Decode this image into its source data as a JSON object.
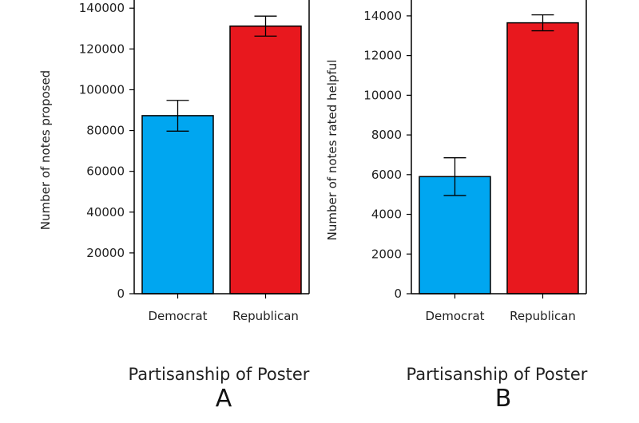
{
  "chart_data": [
    {
      "type": "bar",
      "panel_label": "A",
      "categories": [
        "Democrat",
        "Republican"
      ],
      "values": [
        87300,
        131200
      ],
      "errors": [
        [
          79700,
          94800
        ],
        [
          126300,
          136100
        ]
      ],
      "colors": [
        "#00a6f0",
        "#e8181e"
      ],
      "xlabel": "Partisanship of Poster",
      "ylabel": "Number of notes proposed",
      "ylim": [
        0,
        144000
      ],
      "yticks": [
        0,
        20000,
        40000,
        60000,
        80000,
        100000,
        120000,
        140000
      ],
      "grid": false
    },
    {
      "type": "bar",
      "panel_label": "B",
      "categories": [
        "Democrat",
        "Republican"
      ],
      "values": [
        5900,
        13650
      ],
      "errors": [
        [
          4950,
          6850
        ],
        [
          13250,
          14050
        ]
      ],
      "colors": [
        "#00a6f0",
        "#e8181e"
      ],
      "xlabel": "Partisanship of Poster",
      "ylabel": "Number of notes rated helpful",
      "ylim": [
        0,
        14800
      ],
      "yticks": [
        0,
        2000,
        4000,
        6000,
        8000,
        10000,
        12000,
        14000
      ],
      "grid": false
    }
  ]
}
